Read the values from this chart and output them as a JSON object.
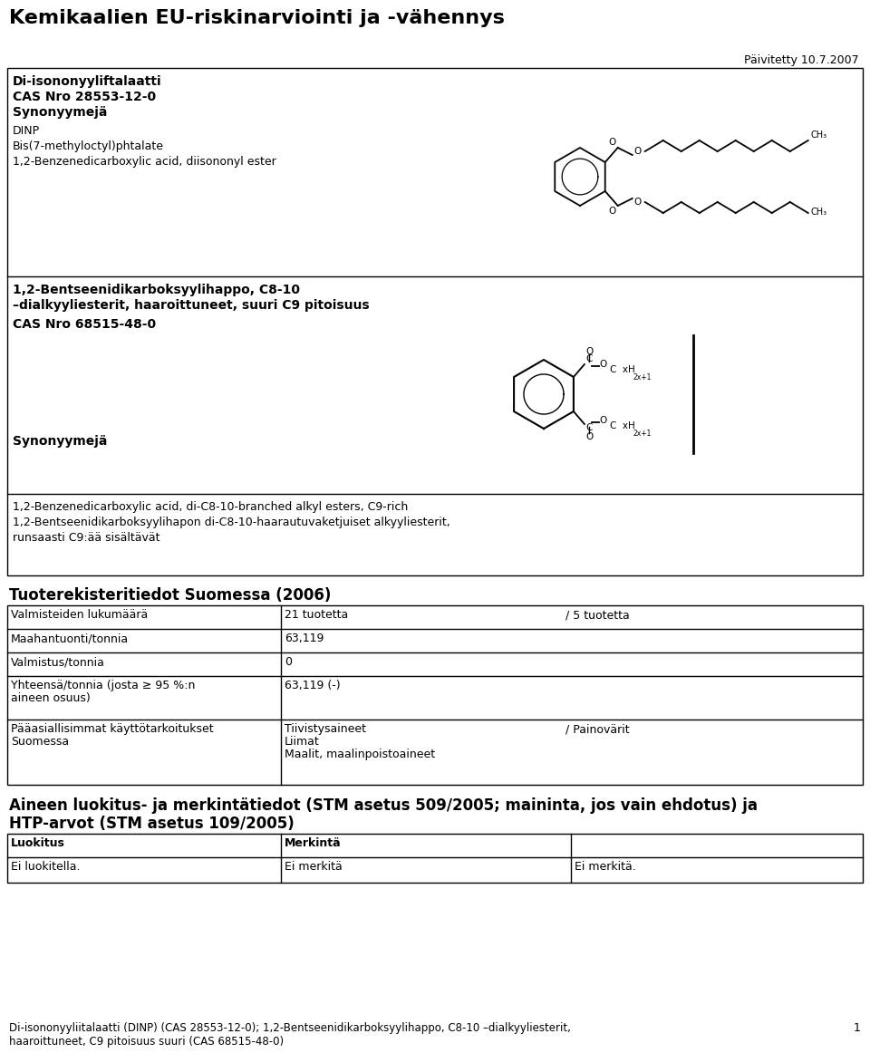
{
  "title": "Kemikaalien EU-riskinarviointi ja -vähennys",
  "date_label": "Päivitetty 10.7.2007",
  "bg_color": "#ffffff",
  "section1": {
    "line1": "Di-isononyyliftalaatti",
    "line2": "CAS Nro 28553-12-0",
    "line3": "Synonyymejä",
    "line4": "DINP",
    "line5": "Bis(7-methyloctyl)phtalate",
    "line6": "1,2-Benzenedicarboxylic acid, diisononyl ester"
  },
  "section2": {
    "line1": "1,2-Bentseenidikarboksyylihappo, C8-10",
    "line2": "–dialkyyliesterit, haaroittuneet, suuri C9 pitoisuus",
    "line3": "CAS Nro 68515-48-0",
    "line4": "Synonyymejä",
    "line5": "1,2-Benzenedicarboxylic acid, di-C8-10-branched alkyl esters, C9-rich",
    "line6": "1,2-Bentseenidikarboksyylihapon di-C8-10-haarautuvaketjuiset alkyyliesterit,",
    "line7": "runsaasti C9:ää sisältävät"
  },
  "tuote_header": "Tuoterekisteritiedot Suomessa (2006)",
  "table1_rows": [
    [
      "Valmisteiden lukumäärä",
      "21 tuotetta",
      "/ 5 tuotetta"
    ],
    [
      "Maahantuonti/tonnia",
      "63,119",
      ""
    ],
    [
      "Valmistus/tonnia",
      "0",
      ""
    ],
    [
      "Yhteensä/tonnia (josta ≥ 95 %:n\naineen osuus)",
      "63,119 (-)",
      ""
    ],
    [
      "Pääasiallisimmat käyttötarkoitukset\nSuomessa",
      "Tiivistysaineet\nLiimat\nMaalit, maalinpoistoaineet",
      "/ Painovärit"
    ]
  ],
  "luokitus_header1": "Aineen luokitus- ja merkintätiedot (STM asetus 509/2005; maininta, jos vain ehdotus) ja",
  "luokitus_header2": "HTP-arvot (STM asetus 109/2005)",
  "footer_text1": "Di-isononyyliitalaatti (DINP) (CAS 28553-12-0); 1,2-Bentseenidikarboksyylihappo, C8-10 –dialkyyliesterit,",
  "footer_text2": "haaroittuneet, C9 pitoisuus suuri (CAS 68515-48-0)",
  "footer_page": "1"
}
